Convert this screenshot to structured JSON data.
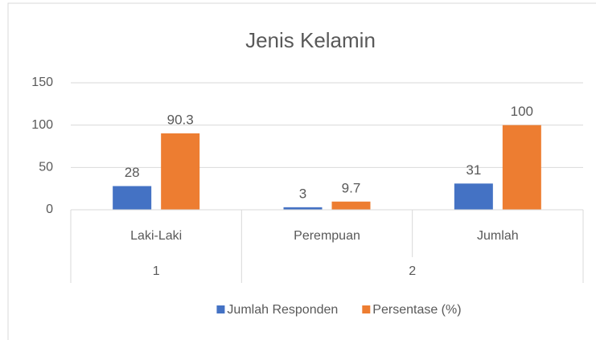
{
  "chart_data": {
    "type": "bar",
    "title": "Jenis Kelamin",
    "groups": [
      {
        "label": "1",
        "categories": [
          "Laki-Laki"
        ]
      },
      {
        "label": "2",
        "categories": [
          "Perempuan",
          "Jumlah"
        ]
      }
    ],
    "series": [
      {
        "name": "Jumlah Responden",
        "color": "#4472c4",
        "values": [
          28,
          3,
          31
        ]
      },
      {
        "name": "Persentase (%)",
        "color": "#ed7d31",
        "values": [
          90.3,
          9.7,
          100
        ]
      }
    ],
    "ylim": [
      0,
      150
    ],
    "yticks": [
      0,
      50,
      100,
      150
    ],
    "grid": true,
    "data_labels": true,
    "legend": "bottom"
  }
}
